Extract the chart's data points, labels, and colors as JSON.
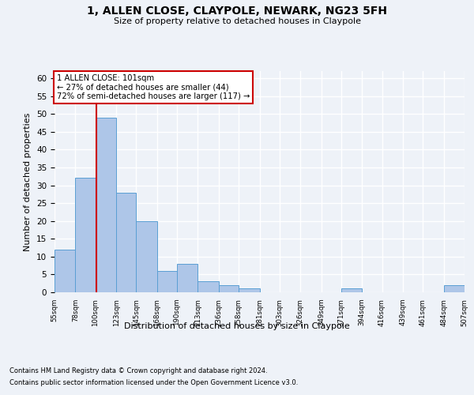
{
  "title1": "1, ALLEN CLOSE, CLAYPOLE, NEWARK, NG23 5FH",
  "title2": "Size of property relative to detached houses in Claypole",
  "xlabel": "Distribution of detached houses by size in Claypole",
  "ylabel": "Number of detached properties",
  "bin_edges": [
    55,
    78,
    100,
    123,
    145,
    168,
    190,
    213,
    236,
    258,
    281,
    303,
    326,
    349,
    371,
    394,
    416,
    439,
    461,
    484,
    507
  ],
  "bar_values": [
    12,
    32,
    49,
    28,
    20,
    6,
    8,
    3,
    2,
    1,
    0,
    0,
    0,
    0,
    1,
    0,
    0,
    0,
    0,
    2
  ],
  "bar_color": "#aec6e8",
  "bar_edge_color": "#5a9fd4",
  "vline_x": 101,
  "vline_color": "#cc0000",
  "ylim": [
    0,
    62
  ],
  "yticks": [
    0,
    5,
    10,
    15,
    20,
    25,
    30,
    35,
    40,
    45,
    50,
    55,
    60
  ],
  "annotation_line1": "1 ALLEN CLOSE: 101sqm",
  "annotation_line2": "← 27% of detached houses are smaller (44)",
  "annotation_line3": "72% of semi-detached houses are larger (117) →",
  "annotation_box_color": "#ffffff",
  "annotation_box_edge_color": "#cc0000",
  "footer1": "Contains HM Land Registry data © Crown copyright and database right 2024.",
  "footer2": "Contains public sector information licensed under the Open Government Licence v3.0.",
  "bg_color": "#eef2f8",
  "plot_bg_color": "#eef2f8",
  "grid_color": "#ffffff",
  "tick_labels": [
    "55sqm",
    "78sqm",
    "100sqm",
    "123sqm",
    "145sqm",
    "168sqm",
    "190sqm",
    "213sqm",
    "236sqm",
    "258sqm",
    "281sqm",
    "303sqm",
    "326sqm",
    "349sqm",
    "371sqm",
    "394sqm",
    "416sqm",
    "439sqm",
    "461sqm",
    "484sqm",
    "507sqm"
  ],
  "title1_fontsize": 10,
  "title2_fontsize": 8,
  "ylabel_fontsize": 8,
  "xlabel_fontsize": 8,
  "footer_fontsize": 6
}
